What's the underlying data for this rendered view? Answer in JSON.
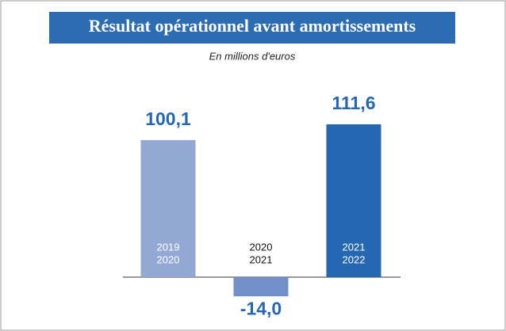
{
  "chart_data": {
    "type": "bar",
    "title": "Résultat opérationnel avant amortissements",
    "subtitle": "En millions d'euros",
    "categories": [
      [
        "2019",
        "2020"
      ],
      [
        "2020",
        "2021"
      ],
      [
        "2021",
        "2022"
      ]
    ],
    "values": [
      100.1,
      -14.0,
      111.6
    ],
    "value_labels": [
      "100,1",
      "-14,0",
      "111,6"
    ],
    "colors": [
      "#93a9d4",
      "#7190c9",
      "#2567b0"
    ]
  }
}
